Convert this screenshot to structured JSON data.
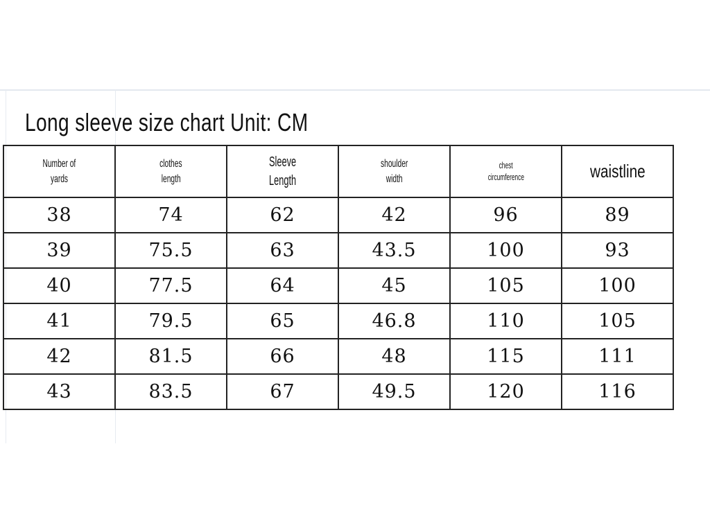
{
  "title": "Long sleeve size chart Unit: CM",
  "table": {
    "headers": [
      [
        "Number of",
        "yards"
      ],
      [
        "clothes",
        "length"
      ],
      [
        "Sleeve",
        "Length"
      ],
      [
        "shoulder",
        "width"
      ],
      [
        "chest",
        "circumference"
      ],
      [
        "waistline"
      ]
    ],
    "rows": [
      [
        "38",
        "74",
        "62",
        "42",
        "96",
        "89"
      ],
      [
        "39",
        "75.5",
        "63",
        "43.5",
        "100",
        "93"
      ],
      [
        "40",
        "77.5",
        "64",
        "45",
        "105",
        "100"
      ],
      [
        "41",
        "79.5",
        "65",
        "46.8",
        "110",
        "105"
      ],
      [
        "42",
        "81.5",
        "66",
        "48",
        "115",
        "111"
      ],
      [
        "43",
        "83.5",
        "67",
        "49.5",
        "120",
        "116"
      ]
    ]
  }
}
